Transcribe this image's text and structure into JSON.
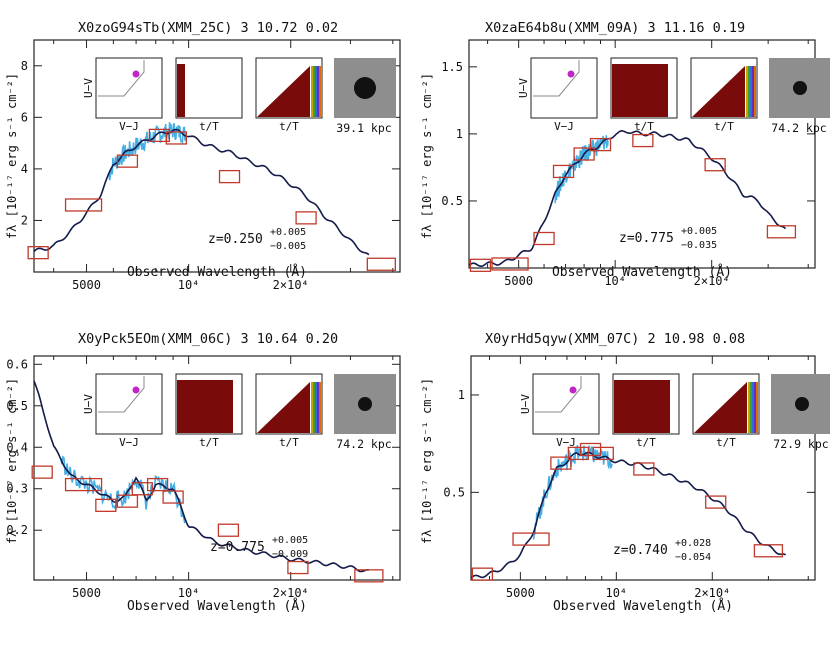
{
  "figure": {
    "common_xlabel": "Observed Wavelength (Å)",
    "ylabel_html": "f<tspan font-style='italic'>λ</tspan>"
  },
  "panels": [
    {
      "title": "X0zoG94sTb(XMM_25C) 3 10.72 0.02",
      "yticks": [
        "2",
        "4",
        "6",
        "8"
      ],
      "xticks": [
        "5000",
        "10⁴",
        "2×10⁴"
      ],
      "ylabel": "fλ [10⁻¹⁷ erg s⁻¹ cm⁻²]",
      "xlabel": "Observed Wavelength (Å)",
      "z_main": "z=0.250",
      "z_sup": "+0.005",
      "z_sub": "−0.005",
      "kpc": "39.1 kpc",
      "inset_labels": {
        "uv": "U−V",
        "vj": "V−J",
        "tT1": "t/T",
        "tT2": "t/T"
      }
    },
    {
      "title": "X0zaE64b8u(XMM_09A) 3 11.16 0.19",
      "yticks": [
        "0.5",
        "1",
        "1.5"
      ],
      "xticks": [
        "5000",
        "10⁴",
        "2×10⁴"
      ],
      "ylabel": "fλ [10⁻¹⁷ erg s⁻¹ cm⁻²]",
      "xlabel": "Observed Wavelength (Å)",
      "z_main": "z=0.775",
      "z_sup": "+0.005",
      "z_sub": "−0.035",
      "kpc": "74.2 kpc",
      "inset_labels": {
        "uv": "U−V",
        "vj": "V−J",
        "tT1": "t/T",
        "tT2": "t/T"
      }
    },
    {
      "title": "X0yPck5EOm(XMM_06C) 3 10.64 0.20",
      "yticks": [
        "0.2",
        "0.3",
        "0.4",
        "0.5",
        "0.6"
      ],
      "xticks": [
        "5000",
        "10⁴",
        "2×10⁴"
      ],
      "ylabel": "fλ [10⁻¹⁷ erg s⁻¹ cm⁻²]",
      "xlabel": "Observed Wavelength (Å)",
      "z_main": "z=0.775",
      "z_sup": "+0.005",
      "z_sub": "−0.009",
      "kpc": "74.2 kpc",
      "inset_labels": {
        "uv": "U−V",
        "vj": "V−J",
        "tT1": "t/T",
        "tT2": "t/T"
      }
    },
    {
      "title": "X0yrHd5qyw(XMM_07C) 2 10.98 0.08",
      "yticks": [
        "0.5",
        "1"
      ],
      "xticks": [
        "5000",
        "10⁴",
        "2×10⁴"
      ],
      "ylabel": "fλ [10⁻¹⁷ erg s⁻¹ cm⁻²]",
      "xlabel": "Observed Wavelength (Å)",
      "z_main": "z=0.740",
      "z_sup": "+0.028",
      "z_sub": "−0.054",
      "kpc": "72.9 kpc",
      "inset_labels": {
        "uv": "U−V",
        "vj": "V−J",
        "tT1": "t/T",
        "tT2": "t/T"
      }
    }
  ],
  "chart_data": [
    {
      "type": "line",
      "title": "X0zoG94sTb(XMM_25C) 3 10.72 0.02",
      "xlabel": "Observed Wavelength (Å)",
      "ylabel": "fλ [10⁻¹⁷ erg s⁻¹ cm⁻²]",
      "x_scale": "log",
      "xlim": [
        3500,
        42000
      ],
      "ylim": [
        0,
        9
      ],
      "model_sed": {
        "x": [
          3500,
          4000,
          4500,
          5000,
          5500,
          6000,
          6500,
          7000,
          8000,
          9000,
          10000,
          11000,
          12000,
          13500,
          15000,
          17000,
          20000,
          22000,
          25000,
          28000,
          30000,
          34000
        ],
        "y": [
          0.8,
          1.0,
          1.6,
          2.3,
          3.0,
          4.2,
          4.6,
          4.9,
          5.3,
          5.5,
          5.3,
          5.0,
          4.8,
          4.6,
          4.3,
          4.0,
          3.4,
          3.0,
          2.2,
          1.6,
          1.2,
          0.6
        ]
      },
      "photometry_boxes": {
        "x": [
          3600,
          4900,
          6600,
          8200,
          9200,
          13200,
          22200,
          37000
        ],
        "y": [
          0.75,
          2.6,
          4.3,
          5.3,
          5.2,
          3.7,
          2.1,
          0.3
        ]
      },
      "grism_range": [
        5800,
        9800
      ]
    },
    {
      "type": "line",
      "title": "X0zaE64b8u(XMM_09A) 3 11.16 0.19",
      "xlabel": "Observed Wavelength (Å)",
      "ylabel": "fλ [10⁻¹⁷ erg s⁻¹ cm⁻²]",
      "x_scale": "log",
      "xlim": [
        3500,
        42000
      ],
      "ylim": [
        0,
        1.7
      ],
      "model_sed": {
        "x": [
          3500,
          4500,
          5500,
          6000,
          6500,
          7000,
          8000,
          9000,
          10000,
          11000,
          12000,
          13500,
          15000,
          17000,
          20000,
          22000,
          25000,
          28000,
          30000,
          34000
        ],
        "y": [
          0.02,
          0.04,
          0.15,
          0.35,
          0.55,
          0.7,
          0.85,
          0.92,
          1.0,
          1.02,
          1.0,
          1.0,
          0.98,
          0.95,
          0.82,
          0.72,
          0.55,
          0.5,
          0.4,
          0.28
        ]
      },
      "photometry_boxes": {
        "x": [
          3800,
          4700,
          6000,
          6900,
          8000,
          9000,
          12200,
          20500,
          33000
        ],
        "y": [
          0.02,
          0.03,
          0.22,
          0.72,
          0.85,
          0.92,
          0.95,
          0.77,
          0.27
        ]
      },
      "grism_range": [
        6500,
        9500
      ]
    },
    {
      "type": "line",
      "title": "X0yPck5EOm(XMM_06C) 3 10.64 0.20",
      "xlabel": "Observed Wavelength (Å)",
      "ylabel": "fλ [10⁻¹⁷ erg s⁻¹ cm⁻²]",
      "x_scale": "log",
      "xlim": [
        3500,
        42000
      ],
      "ylim": [
        0.08,
        0.62
      ],
      "model_sed": {
        "x": [
          3500,
          4000,
          4500,
          5000,
          5500,
          6000,
          6500,
          7000,
          7500,
          8000,
          9000,
          10000,
          12000,
          15000,
          20000,
          25000,
          30000,
          34000
        ],
        "y": [
          0.56,
          0.4,
          0.33,
          0.31,
          0.29,
          0.27,
          0.28,
          0.33,
          0.27,
          0.31,
          0.3,
          0.21,
          0.17,
          0.15,
          0.13,
          0.12,
          0.11,
          0.1
        ]
      },
      "photometry_boxes": {
        "x": [
          3700,
          4900,
          5700,
          6600,
          7300,
          8100,
          9000,
          13100,
          21000,
          34000
        ],
        "y": [
          0.34,
          0.31,
          0.26,
          0.27,
          0.3,
          0.31,
          0.28,
          0.2,
          0.11,
          0.09
        ]
      },
      "grism_range": [
        4200,
        9800
      ]
    },
    {
      "type": "line",
      "title": "X0yrHd5qyw(XMM_07C) 2 10.98 0.08",
      "xlabel": "Observed Wavelength (Å)",
      "ylabel": "fλ [10⁻¹⁷ erg s⁻¹ cm⁻²]",
      "x_scale": "log",
      "xlim": [
        3500,
        42000
      ],
      "ylim": [
        0.05,
        1.2
      ],
      "model_sed": {
        "x": [
          3500,
          4000,
          4500,
          5000,
          5500,
          6000,
          6500,
          7000,
          7500,
          8000,
          9000,
          10000,
          12000,
          15000,
          18000,
          20000,
          22000,
          25000,
          28000,
          30000,
          34000
        ],
        "y": [
          0.06,
          0.08,
          0.12,
          0.18,
          0.3,
          0.5,
          0.62,
          0.66,
          0.7,
          0.7,
          0.68,
          0.66,
          0.64,
          0.58,
          0.52,
          0.47,
          0.42,
          0.32,
          0.25,
          0.22,
          0.17
        ]
      },
      "photometry_boxes": {
        "x": [
          3800,
          5400,
          6700,
          7600,
          8300,
          9100,
          12200,
          20500,
          30000
        ],
        "y": [
          0.08,
          0.26,
          0.65,
          0.7,
          0.72,
          0.7,
          0.62,
          0.45,
          0.2
        ]
      },
      "grism_range": [
        5500,
        9700
      ]
    }
  ]
}
